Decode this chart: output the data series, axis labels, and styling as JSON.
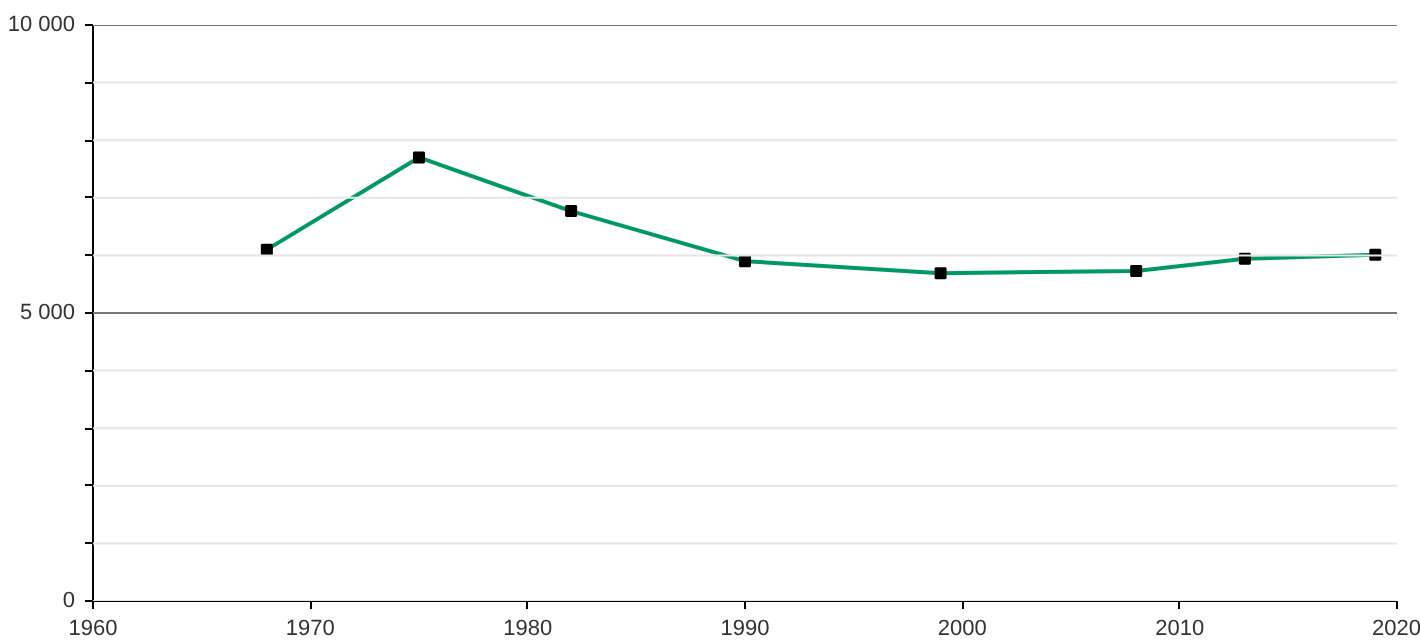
{
  "chart_data": {
    "type": "line",
    "x": [
      1968,
      1975,
      1982,
      1990,
      1999,
      2008,
      2013,
      2019
    ],
    "series": [
      {
        "color": "#009966",
        "values": [
          6100,
          7700,
          6770,
          5900,
          5690,
          5730,
          5940,
          6010
        ]
      }
    ],
    "xlim": [
      1960,
      2020
    ],
    "xticks": [
      1960,
      1970,
      1980,
      1990,
      2000,
      2010,
      2020
    ],
    "ylim": [
      0,
      10000
    ],
    "yticks": [
      {
        "value": 0,
        "label": "0"
      },
      {
        "value": 1000,
        "label": null
      },
      {
        "value": 2000,
        "label": null
      },
      {
        "value": 3000,
        "label": null
      },
      {
        "value": 4000,
        "label": null
      },
      {
        "value": 5000,
        "label": "5 000"
      },
      {
        "value": 6000,
        "label": null
      },
      {
        "value": 7000,
        "label": null
      },
      {
        "value": 8000,
        "label": null
      },
      {
        "value": 9000,
        "label": null
      },
      {
        "value": 10000,
        "label": "10 000"
      }
    ],
    "ref_lines": [
      {
        "axis": "y",
        "value": 5000,
        "color": "#777777"
      },
      {
        "axis": "y",
        "value": 10000,
        "color": "#777777"
      }
    ],
    "grid": "y",
    "marker": "square",
    "line_style": "solid"
  }
}
